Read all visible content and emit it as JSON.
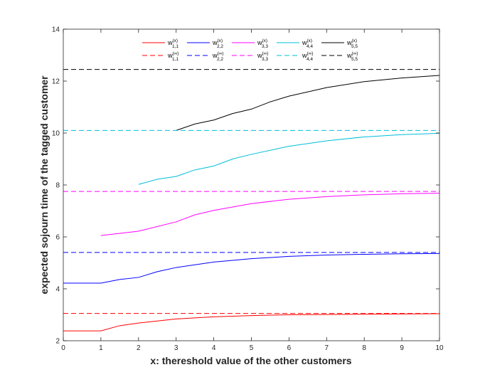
{
  "chart_data": {
    "type": "line",
    "xlabel": "x: thereshold value of the other customers",
    "ylabel": "expected sojourn time of the tagged customer",
    "xlim": [
      0,
      10
    ],
    "ylim": [
      2,
      14
    ],
    "xticks": [
      "0",
      "1",
      "2",
      "3",
      "4",
      "5",
      "6",
      "7",
      "8",
      "9",
      "10"
    ],
    "yticks": [
      "2",
      "4",
      "6",
      "8",
      "10",
      "12",
      "14"
    ],
    "grid": false,
    "legend_position": "top",
    "series": [
      {
        "name": "w(x) 1,1",
        "legend_sup": "(x)",
        "legend_sub": "1,1",
        "color": "#ff0000",
        "style": "solid",
        "x": [
          0,
          1,
          1.5,
          2,
          3,
          4,
          5,
          6,
          7,
          8,
          9,
          10
        ],
        "y": [
          2.38,
          2.38,
          2.58,
          2.68,
          2.84,
          2.92,
          2.97,
          3.0,
          3.01,
          3.02,
          3.03,
          3.04
        ]
      },
      {
        "name": "w(x) 2,2",
        "legend_sup": "(x)",
        "legend_sub": "2,2",
        "color": "#0000ff",
        "style": "solid",
        "x": [
          0,
          1,
          1.5,
          2,
          2.5,
          3,
          4,
          5,
          6,
          7,
          8,
          9,
          10
        ],
        "y": [
          4.22,
          4.22,
          4.36,
          4.44,
          4.66,
          4.82,
          5.03,
          5.16,
          5.25,
          5.3,
          5.33,
          5.35,
          5.36
        ]
      },
      {
        "name": "w(x) 3,3",
        "legend_sup": "(x)",
        "legend_sub": "3,3",
        "color": "#ff00ff",
        "style": "solid",
        "x": [
          1,
          2,
          3,
          3.5,
          4,
          5,
          6,
          7,
          8,
          9,
          10
        ],
        "y": [
          6.05,
          6.22,
          6.58,
          6.85,
          7.02,
          7.28,
          7.45,
          7.55,
          7.62,
          7.66,
          7.68
        ]
      },
      {
        "name": "w(x) 4,4",
        "legend_sup": "(x)",
        "legend_sub": "4,4",
        "color": "#00bfd9",
        "style": "solid",
        "x": [
          2,
          2.5,
          3,
          3.5,
          4,
          4.5,
          5,
          6,
          7,
          8,
          9,
          10
        ],
        "y": [
          8.02,
          8.22,
          8.33,
          8.58,
          8.73,
          9.0,
          9.18,
          9.49,
          9.7,
          9.85,
          9.94,
          9.99
        ]
      },
      {
        "name": "w(x) 5,5",
        "legend_sup": "(x)",
        "legend_sub": "5,5",
        "color": "#000000",
        "style": "solid",
        "x": [
          3,
          3.5,
          4,
          4.5,
          5,
          5.5,
          6,
          7,
          8,
          9,
          10
        ],
        "y": [
          10.1,
          10.35,
          10.5,
          10.75,
          10.92,
          11.2,
          11.42,
          11.75,
          11.98,
          12.12,
          12.22
        ]
      },
      {
        "name": "w(∞) 1,1",
        "legend_sup": "(∞)",
        "legend_sub": "1,1",
        "color": "#ff0000",
        "style": "dashed",
        "x": [
          0,
          10
        ],
        "y": [
          3.05,
          3.05
        ]
      },
      {
        "name": "w(∞) 2,2",
        "legend_sup": "(∞)",
        "legend_sub": "2,2",
        "color": "#0000ff",
        "style": "dashed",
        "x": [
          0,
          10
        ],
        "y": [
          5.4,
          5.4
        ]
      },
      {
        "name": "w(∞) 3,3",
        "legend_sup": "(∞)",
        "legend_sub": "3,3",
        "color": "#ff00ff",
        "style": "dashed",
        "x": [
          0,
          10
        ],
        "y": [
          7.75,
          7.75
        ]
      },
      {
        "name": "w(∞) 4,4",
        "legend_sup": "(∞)",
        "legend_sub": "4,4",
        "color": "#00bfd9",
        "style": "dashed",
        "x": [
          0,
          10
        ],
        "y": [
          10.1,
          10.1
        ]
      },
      {
        "name": "w(∞) 5,5",
        "legend_sup": "(∞)",
        "legend_sub": "5,5",
        "color": "#000000",
        "style": "dashed",
        "x": [
          0,
          10
        ],
        "y": [
          12.45,
          12.45
        ]
      }
    ]
  }
}
